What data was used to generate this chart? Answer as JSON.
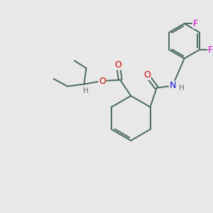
{
  "bg_color": "#e8e8e8",
  "bond_color": "#4a6b5a",
  "bond_width": 1.4,
  "atom_colors": {
    "O": "#cc0000",
    "N": "#1010dd",
    "F": "#cc00cc",
    "H": "#666666"
  }
}
